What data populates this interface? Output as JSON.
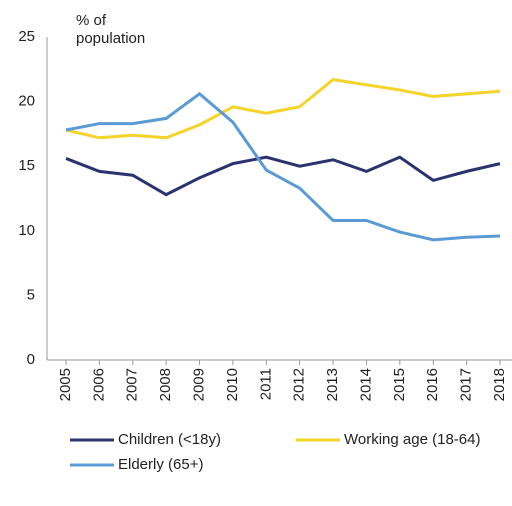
{
  "chart_data": {
    "type": "line",
    "y_label": "% of population",
    "categories": [
      "2005",
      "2006",
      "2007",
      "2008",
      "2009",
      "2010",
      "2011",
      "2012",
      "2013",
      "2014",
      "2015",
      "2016",
      "2017",
      "2018"
    ],
    "series": [
      {
        "name": "Children (<18y)",
        "color": "#2b3270",
        "values": [
          15.6,
          14.6,
          14.3,
          12.8,
          14.1,
          15.2,
          15.7,
          15.0,
          15.5,
          14.6,
          15.7,
          13.9,
          14.6,
          15.2
        ]
      },
      {
        "name": "Working age (18-64)",
        "color": "#f5d42a",
        "values": [
          17.8,
          17.2,
          17.4,
          17.2,
          18.2,
          19.6,
          19.1,
          19.6,
          21.7,
          21.3,
          20.9,
          20.4,
          20.6,
          20.8
        ]
      },
      {
        "name": "Elderly (65+)",
        "color": "#5b9bd5",
        "values": [
          17.8,
          18.3,
          18.3,
          18.7,
          20.6,
          18.4,
          14.7,
          13.3,
          10.8,
          10.8,
          9.9,
          9.3,
          9.5,
          9.6
        ]
      }
    ],
    "ylim": [
      0,
      25
    ],
    "yticks": [
      0,
      5,
      10,
      15,
      20,
      25
    ],
    "grid": false,
    "legend": "bottom"
  }
}
